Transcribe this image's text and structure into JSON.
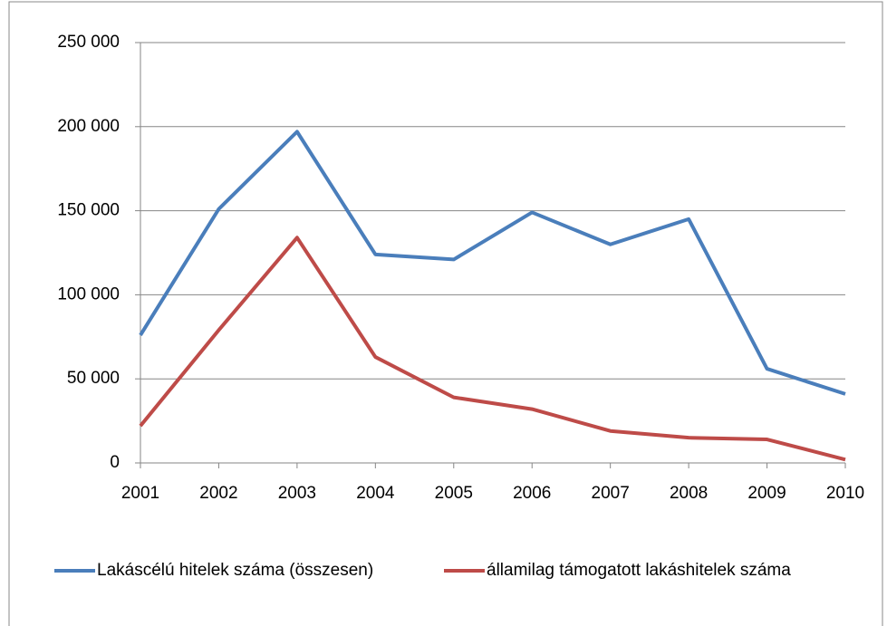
{
  "chart_data": {
    "type": "line",
    "categories": [
      "2001",
      "2002",
      "2003",
      "2004",
      "2005",
      "2006",
      "2007",
      "2008",
      "2009",
      "2010"
    ],
    "series": [
      {
        "name": "Lakáscélú hitelek száma (összesen)",
        "color": "#4a7ebb",
        "values": [
          76000,
          151000,
          197000,
          124000,
          121000,
          149000,
          130000,
          145000,
          56000,
          41000
        ]
      },
      {
        "name": "államilag támogatott lakáshitelek száma",
        "color": "#be4b48",
        "values": [
          22000,
          79000,
          134000,
          63000,
          39000,
          32000,
          19000,
          15000,
          14000,
          2000
        ]
      }
    ],
    "ylim": [
      0,
      250000
    ],
    "yticks": [
      0,
      {
        "value": 50000,
        "label": "50 000"
      },
      {
        "value": 100000,
        "label": "100 000"
      },
      {
        "value": 150000,
        "label": "150 000"
      },
      {
        "value": 200000,
        "label": "200 000"
      },
      {
        "value": 250000,
        "label": "250 000"
      }
    ],
    "grid": true,
    "legend": "bottom"
  }
}
